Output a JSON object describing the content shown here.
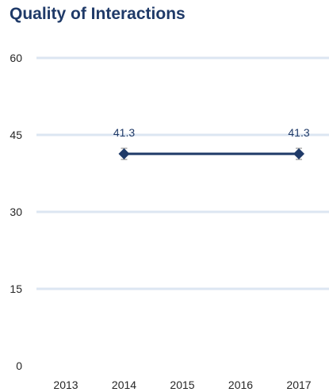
{
  "chart_data": {
    "type": "line",
    "title": "Quality of Interactions",
    "xlabel": "",
    "ylabel": "",
    "categories": [
      "2013",
      "2014",
      "2015",
      "2016",
      "2017"
    ],
    "series": [
      {
        "values": [
          null,
          41.3,
          null,
          null,
          41.3
        ],
        "data_labels": [
          "",
          "41.3",
          "",
          "",
          "41.3"
        ],
        "error_bars": true,
        "connect_gaps": true
      }
    ],
    "ylim": [
      0,
      60
    ],
    "yticks": [
      0,
      15,
      30,
      45,
      60
    ],
    "grid": true,
    "legend": "none",
    "colors": {
      "title": "#1f3a68",
      "series": "#1f3a68",
      "grid": "#dce6f2",
      "tick_text": "#262626",
      "error_bar": "#7f7f7f"
    }
  }
}
